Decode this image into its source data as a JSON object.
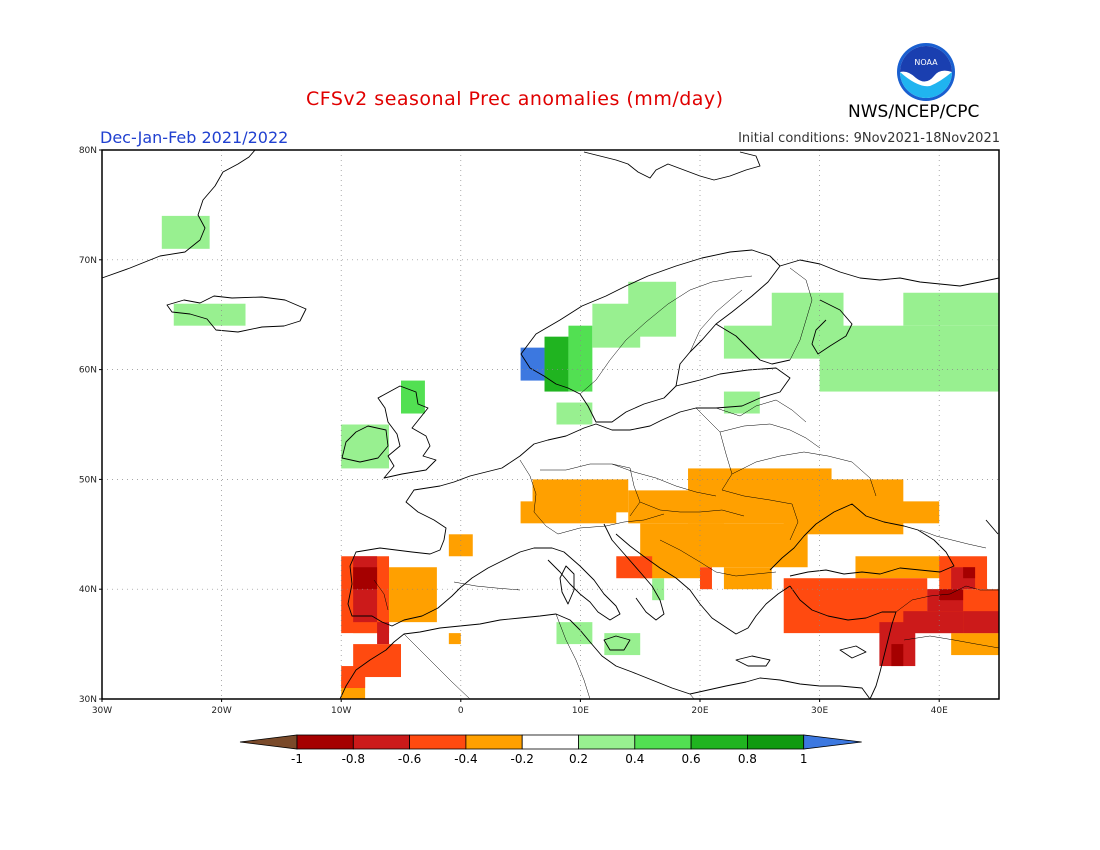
{
  "header": {
    "title": "CFSv2 seasonal Prec anomalies (mm/day)",
    "season": "Dec-Jan-Feb 2021/2022",
    "initial_conditions": "Initial conditions: 9Nov2021-18Nov2021",
    "agency": "NWS/NCEP/CPC",
    "logo_text": "NOAA"
  },
  "map": {
    "region": "Europe",
    "lon_range": [
      -30,
      45
    ],
    "lat_range": [
      30,
      80
    ],
    "lat_ticks": [
      "80N",
      "70N",
      "60N",
      "50N",
      "40N",
      "30N"
    ],
    "lon_ticks": [
      "30W",
      "20W",
      "10W",
      "0",
      "10E",
      "20E",
      "30E",
      "40E"
    ]
  },
  "anomalies": [
    {
      "lon_min": -25,
      "lon_max": -21,
      "lat_min": 71,
      "lat_max": 74,
      "value": 0.3
    },
    {
      "lon_min": -24,
      "lon_max": -18,
      "lat_min": 64,
      "lat_max": 66,
      "value": 0.3
    },
    {
      "lon_min": -10,
      "lon_max": -6,
      "lat_min": 51,
      "lat_max": 55,
      "value": 0.3
    },
    {
      "lon_min": -5,
      "lon_max": -3,
      "lat_min": 56,
      "lat_max": 59,
      "value": 0.5
    },
    {
      "lon_min": 5,
      "lon_max": 7,
      "lat_min": 59,
      "lat_max": 62,
      "value": 1.1
    },
    {
      "lon_min": 7,
      "lon_max": 9,
      "lat_min": 58,
      "lat_max": 63,
      "value": 0.7
    },
    {
      "lon_min": 9,
      "lon_max": 11,
      "lat_min": 58,
      "lat_max": 64,
      "value": 0.5
    },
    {
      "lon_min": 11,
      "lon_max": 15,
      "lat_min": 62,
      "lat_max": 66,
      "value": 0.3
    },
    {
      "lon_min": 14,
      "lon_max": 18,
      "lat_min": 63,
      "lat_max": 68,
      "value": 0.3
    },
    {
      "lon_min": 8,
      "lon_max": 11,
      "lat_min": 55,
      "lat_max": 57,
      "value": 0.3
    },
    {
      "lon_min": 22,
      "lon_max": 25,
      "lat_min": 56,
      "lat_max": 58,
      "value": 0.3
    },
    {
      "lon_min": 22,
      "lon_max": 30,
      "lat_min": 61,
      "lat_max": 64,
      "value": 0.3
    },
    {
      "lon_min": 26,
      "lon_max": 32,
      "lat_min": 63,
      "lat_max": 67,
      "value": 0.3
    },
    {
      "lon_min": 30,
      "lon_max": 45,
      "lat_min": 58,
      "lat_max": 64,
      "value": 0.3
    },
    {
      "lon_min": 37,
      "lon_max": 45,
      "lat_min": 64,
      "lat_max": 67,
      "value": 0.3
    },
    {
      "lon_min": 12,
      "lon_max": 15,
      "lat_min": 34,
      "lat_max": 36,
      "value": 0.3
    },
    {
      "lon_min": 8,
      "lon_max": 11,
      "lat_min": 35,
      "lat_max": 37,
      "value": 0.3
    },
    {
      "lon_min": 16,
      "lon_max": 17,
      "lat_min": 39,
      "lat_max": 41,
      "value": 0.3
    },
    {
      "lon_min": 6,
      "lon_max": 14,
      "lat_min": 47,
      "lat_max": 50,
      "value": -0.3
    },
    {
      "lon_min": 14,
      "lon_max": 22,
      "lat_min": 46,
      "lat_max": 49,
      "value": -0.3
    },
    {
      "lon_min": 19,
      "lon_max": 31,
      "lat_min": 46,
      "lat_max": 51,
      "value": -0.3
    },
    {
      "lon_min": 27,
      "lon_max": 37,
      "lat_min": 45,
      "lat_max": 50,
      "value": -0.3
    },
    {
      "lon_min": 36,
      "lon_max": 40,
      "lat_min": 46,
      "lat_max": 48,
      "value": -0.3
    },
    {
      "lon_min": 15,
      "lon_max": 20,
      "lat_min": 41,
      "lat_max": 46,
      "value": -0.3
    },
    {
      "lon_min": 20,
      "lon_max": 29,
      "lat_min": 42,
      "lat_max": 46,
      "value": -0.3
    },
    {
      "lon_min": 22,
      "lon_max": 26,
      "lat_min": 40,
      "lat_max": 42,
      "value": -0.3
    },
    {
      "lon_min": 5,
      "lon_max": 13,
      "lat_min": 46,
      "lat_max": 48,
      "value": -0.3
    },
    {
      "lon_min": -1,
      "lon_max": 1,
      "lat_min": 43,
      "lat_max": 45,
      "value": -0.3
    },
    {
      "lon_min": -6,
      "lon_max": -2,
      "lat_min": 37,
      "lat_max": 42,
      "value": -0.3
    },
    {
      "lon_min": -9,
      "lon_max": -6,
      "lat_min": 36,
      "lat_max": 38,
      "value": -0.3
    },
    {
      "lon_min": -10,
      "lon_max": -8,
      "lat_min": 30,
      "lat_max": 32,
      "value": -0.3
    },
    {
      "lon_min": -1,
      "lon_max": 0,
      "lat_min": 35,
      "lat_max": 36,
      "value": -0.3
    },
    {
      "lon_min": 33,
      "lon_max": 41,
      "lat_min": 41,
      "lat_max": 43,
      "value": -0.3
    },
    {
      "lon_min": 41,
      "lon_max": 45,
      "lat_min": 34,
      "lat_max": 36,
      "value": -0.3
    },
    {
      "lon_min": 27,
      "lon_max": 39,
      "lat_min": 36,
      "lat_max": 41,
      "value": -0.5
    },
    {
      "lon_min": 39,
      "lon_max": 45,
      "lat_min": 36,
      "lat_max": 40,
      "value": -0.5
    },
    {
      "lon_min": 40,
      "lon_max": 44,
      "lat_min": 40,
      "lat_max": 43,
      "value": -0.5
    },
    {
      "lon_min": 13,
      "lon_max": 16,
      "lat_min": 41,
      "lat_max": 43,
      "value": -0.5
    },
    {
      "lon_min": 20,
      "lon_max": 21,
      "lat_min": 40,
      "lat_max": 42,
      "value": -0.5
    },
    {
      "lon_min": -10,
      "lon_max": -6,
      "lat_min": 36,
      "lat_max": 43,
      "value": -0.5
    },
    {
      "lon_min": -9,
      "lon_max": -5,
      "lat_min": 32,
      "lat_max": 35,
      "value": -0.5
    },
    {
      "lon_min": -10,
      "lon_max": -8,
      "lat_min": 31,
      "lat_max": 33,
      "value": -0.5
    },
    {
      "lon_min": 35,
      "lon_max": 38,
      "lat_min": 33,
      "lat_max": 37,
      "value": -0.7
    },
    {
      "lon_min": 37,
      "lon_max": 42,
      "lat_min": 36,
      "lat_max": 38,
      "value": -0.7
    },
    {
      "lon_min": 39,
      "lon_max": 42,
      "lat_min": 38,
      "lat_max": 40,
      "value": -0.7
    },
    {
      "lon_min": 41,
      "lon_max": 43,
      "lat_min": 40,
      "lat_max": 42,
      "value": -0.7
    },
    {
      "lon_min": 42,
      "lon_max": 45,
      "lat_min": 36,
      "lat_max": 38,
      "value": -0.7
    },
    {
      "lon_min": -9,
      "lon_max": -7,
      "lat_min": 37,
      "lat_max": 43,
      "value": -0.7
    },
    {
      "lon_min": -7,
      "lon_max": -6,
      "lat_min": 35,
      "lat_max": 37,
      "value": -0.7
    },
    {
      "lon_min": 36,
      "lon_max": 37,
      "lat_min": 33,
      "lat_max": 35,
      "value": -0.9
    },
    {
      "lon_min": 40,
      "lon_max": 42,
      "lat_min": 39,
      "lat_max": 40,
      "value": -0.9
    },
    {
      "lon_min": 42,
      "lon_max": 43,
      "lat_min": 41,
      "lat_max": 42,
      "value": -0.9
    },
    {
      "lon_min": -9,
      "lon_max": -7,
      "lat_min": 40,
      "lat_max": 42,
      "value": -0.9
    }
  ],
  "colorbar": {
    "labels": [
      "-1",
      "-0.8",
      "-0.6",
      "-0.4",
      "-0.2",
      "0.2",
      "0.4",
      "0.6",
      "0.8",
      "1"
    ],
    "colors": [
      "#7a4a2a",
      "#a50000",
      "#cc1a1a",
      "#ff4a10",
      "#ffa000",
      "#ffffff",
      "#98f090",
      "#52e052",
      "#20b420",
      "#109a10",
      "#3c78e0"
    ]
  }
}
